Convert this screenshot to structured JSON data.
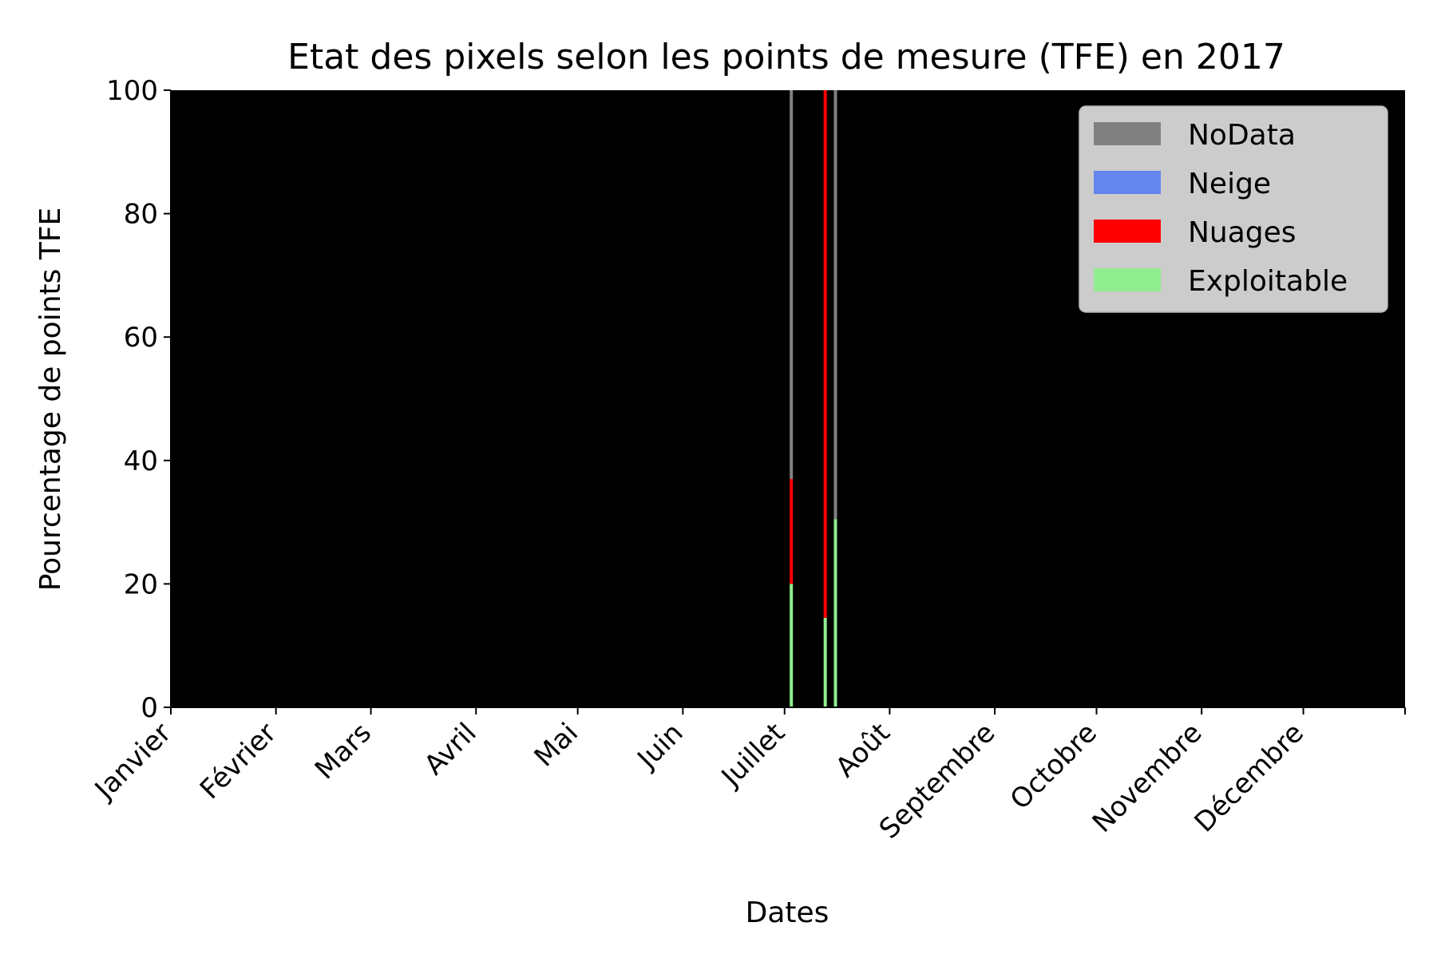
{
  "chart_data": {
    "type": "bar",
    "stacked": true,
    "title": "Etat des pixels selon les points de mesure (TFE) en 2017",
    "xlabel": "Dates",
    "ylabel": "Pourcentage de points TFE",
    "ylim": [
      0,
      100
    ],
    "yticks": [
      "0",
      "20",
      "40",
      "60",
      "80",
      "100"
    ],
    "xlim": [
      "2017-01-01",
      "2017-12-31"
    ],
    "month_ticks": [
      {
        "date": "2017-01-01",
        "label": "Janvier"
      },
      {
        "date": "2017-02-01",
        "label": "Février"
      },
      {
        "date": "2017-03-01",
        "label": "Mars"
      },
      {
        "date": "2017-04-01",
        "label": "Avril"
      },
      {
        "date": "2017-05-01",
        "label": "Mai"
      },
      {
        "date": "2017-06-01",
        "label": "Juin"
      },
      {
        "date": "2017-07-01",
        "label": "Juillet"
      },
      {
        "date": "2017-08-01",
        "label": "Août"
      },
      {
        "date": "2017-09-01",
        "label": "Septembre"
      },
      {
        "date": "2017-10-01",
        "label": "Octobre"
      },
      {
        "date": "2017-11-01",
        "label": "Novembre"
      },
      {
        "date": "2017-12-01",
        "label": "Décembre"
      }
    ],
    "background_color": "#000000",
    "grid": false,
    "legend_position": "top-right",
    "series_order": [
      "NoData",
      "Neige",
      "Nuages",
      "Exploitable"
    ],
    "series": [
      {
        "name": "NoData",
        "color": "#808080"
      },
      {
        "name": "Neige",
        "color": "#6485ED"
      },
      {
        "name": "Nuages",
        "color": "#FF0000"
      },
      {
        "name": "Exploitable",
        "color": "#90EE90"
      }
    ],
    "bars": [
      {
        "date": "2017-07-03",
        "Exploitable": 20,
        "Nuages": 17,
        "Neige": 0,
        "NoData": 63
      },
      {
        "date": "2017-07-13",
        "Exploitable": 14.5,
        "Nuages": 85.5,
        "Neige": 0,
        "NoData": 0
      },
      {
        "date": "2017-07-16",
        "Exploitable": 30.5,
        "Nuages": 0,
        "Neige": 0,
        "NoData": 69.5
      }
    ]
  }
}
